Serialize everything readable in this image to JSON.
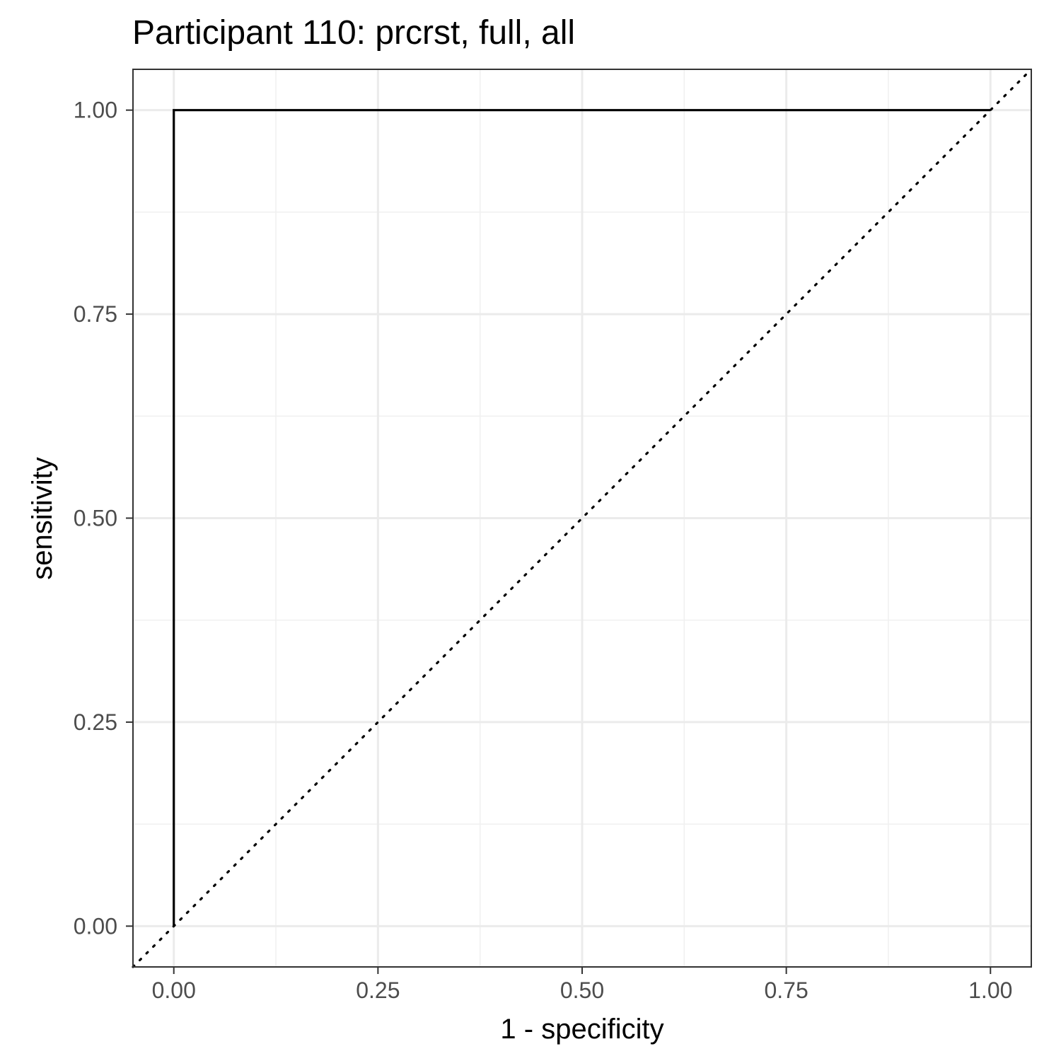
{
  "chart_data": {
    "type": "line",
    "title": "Participant 110: prcrst, full, all",
    "xlabel": "1 - specificity",
    "ylabel": "sensitivity",
    "xlim": [
      -0.05,
      1.05
    ],
    "ylim": [
      -0.05,
      1.05
    ],
    "x_ticks": [
      0,
      0.25,
      0.5,
      0.75,
      1
    ],
    "x_tick_labels": [
      "0.00",
      "0.25",
      "0.50",
      "0.75",
      "1.00"
    ],
    "y_ticks": [
      0,
      0.25,
      0.5,
      0.75,
      1
    ],
    "y_tick_labels": [
      "0.00",
      "0.25",
      "0.50",
      "0.75",
      "1.00"
    ],
    "grid": true,
    "series": [
      {
        "style": "solid",
        "color": "#000000",
        "x": [
          0,
          0,
          1
        ],
        "y": [
          0,
          1,
          1
        ]
      },
      {
        "style": "dotted",
        "color": "#000000",
        "x": [
          -0.05,
          1.05
        ],
        "y": [
          -0.05,
          1.05
        ]
      }
    ]
  }
}
